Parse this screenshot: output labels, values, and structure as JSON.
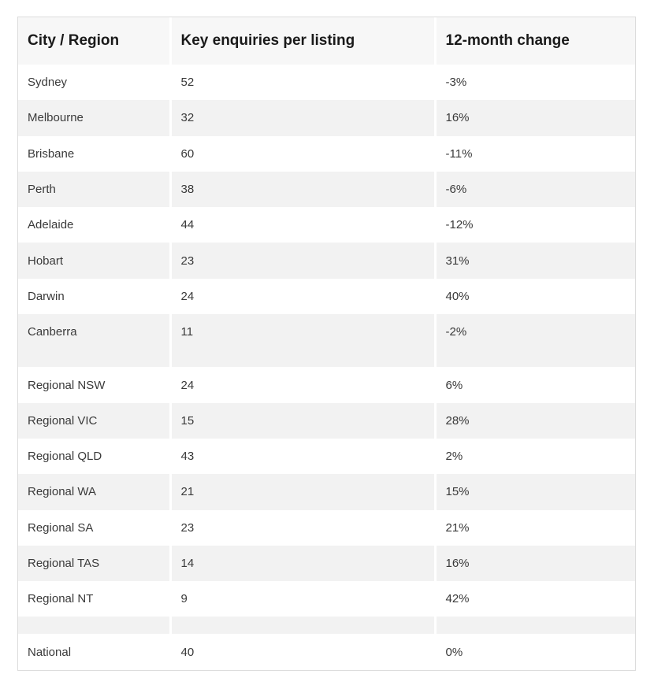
{
  "table": {
    "headers": [
      "City / Region",
      "Key enquiries per listing",
      "12-month change"
    ],
    "groups": [
      {
        "rows": [
          [
            "Sydney",
            "52",
            "-3%"
          ],
          [
            "Melbourne",
            "32",
            "16%"
          ],
          [
            "Brisbane",
            "60",
            "-11%"
          ],
          [
            "Perth",
            "38",
            "-6%"
          ],
          [
            "Adelaide",
            "44",
            "-12%"
          ],
          [
            "Hobart",
            "23",
            "31%"
          ],
          [
            "Darwin",
            "24",
            "40%"
          ],
          [
            "Canberra",
            "11",
            "-2%"
          ]
        ]
      },
      {
        "rows": [
          [
            "Regional NSW",
            "24",
            "6%"
          ],
          [
            "Regional VIC",
            "15",
            "28%"
          ],
          [
            "Regional QLD",
            "43",
            "2%"
          ],
          [
            "Regional WA",
            "21",
            "15%"
          ],
          [
            "Regional SA",
            "23",
            "21%"
          ],
          [
            "Regional TAS",
            "14",
            "16%"
          ],
          [
            "Regional NT",
            "9",
            "42%"
          ]
        ]
      },
      {
        "rows": [
          [
            "National",
            "40",
            "0%"
          ]
        ]
      }
    ]
  }
}
